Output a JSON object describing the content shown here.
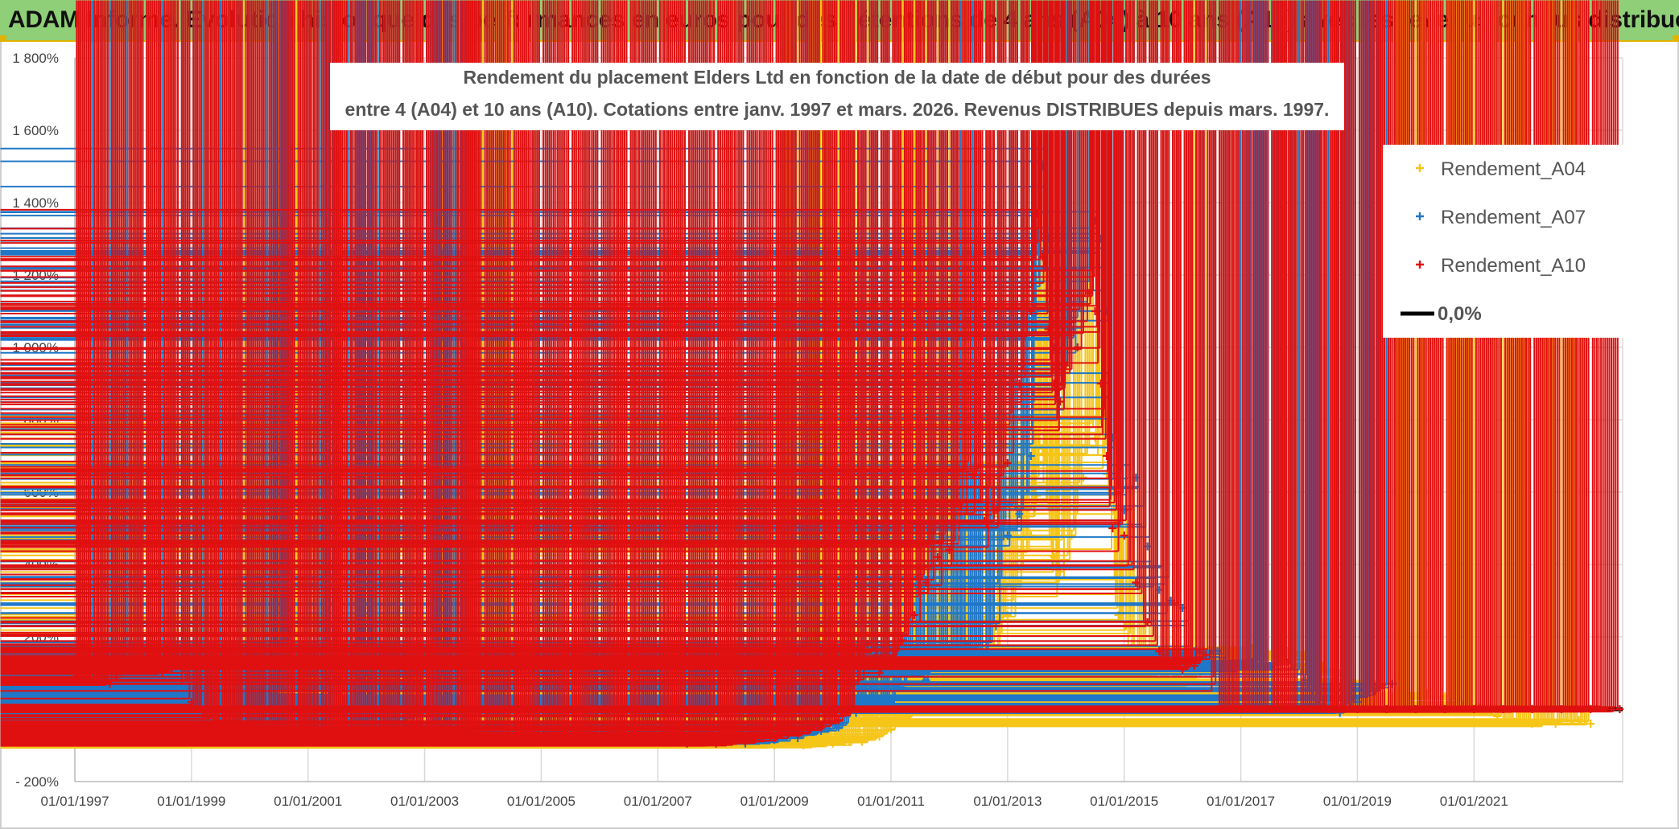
{
  "banner": {
    "title": "ADAM Informe. Evolution historique des performances en euros pour des détentions de 4 ans (A04) à 10 ans (A10) avec les revenus connus distribués",
    "background": "#8fcf78"
  },
  "chart_data": {
    "type": "scatter",
    "title_line1": "Rendement du placement Elders Ltd en fonction de la date de début pour des durées",
    "title_line2": "entre 4 (A04) et 10 ans (A10). Cotations entre janv. 1997 et mars. 2026. Revenus DISTRIBUES depuis mars. 1997.",
    "x_range": [
      1997.0,
      2023.55
    ],
    "ylim": [
      -200,
      1800
    ],
    "y_ticks": [
      -200,
      0,
      200,
      400,
      600,
      800,
      1000,
      1200,
      1400,
      1600,
      1800
    ],
    "y_tick_labels": [
      "- 200%",
      "0%",
      "200%",
      "400%",
      "600%",
      "800%",
      "1 000%",
      "1 200%",
      "1 400%",
      "1 600%",
      "1 800%"
    ],
    "x_ticks": [
      1997,
      1999,
      2001,
      2003,
      2005,
      2007,
      2009,
      2011,
      2013,
      2015,
      2017,
      2019,
      2021
    ],
    "x_tick_labels": [
      "01/01/1997",
      "01/01/1999",
      "01/01/2001",
      "01/01/2003",
      "01/01/2005",
      "01/01/2007",
      "01/01/2009",
      "01/01/2011",
      "01/01/2013",
      "01/01/2015",
      "01/01/2017",
      "01/01/2019",
      "01/01/2021"
    ],
    "legend": {
      "position": "top-right",
      "entries": [
        "Rendement_A04",
        "Rendement_A07",
        "Rendement_A10",
        "0,0%"
      ]
    },
    "series": [
      {
        "name": "Rendement_A04",
        "color": "#f5c518",
        "points": [
          [
            1997.0,
            40
          ],
          [
            1997.3,
            35
          ],
          [
            1997.6,
            -5
          ],
          [
            1997.9,
            40
          ],
          [
            1998.2,
            50
          ],
          [
            1998.5,
            60
          ],
          [
            1998.8,
            20
          ],
          [
            1999.0,
            5
          ],
          [
            1999.4,
            -5
          ],
          [
            1999.8,
            -15
          ],
          [
            2000.2,
            15
          ],
          [
            2000.6,
            10
          ],
          [
            2001.0,
            30
          ],
          [
            2001.3,
            20
          ],
          [
            2001.6,
            10
          ],
          [
            2001.8,
            75
          ],
          [
            2002.0,
            40
          ],
          [
            2002.3,
            60
          ],
          [
            2002.6,
            90
          ],
          [
            2002.8,
            120
          ],
          [
            2003.0,
            100
          ],
          [
            2003.4,
            95
          ],
          [
            2003.8,
            90
          ],
          [
            2004.2,
            70
          ],
          [
            2004.6,
            50
          ],
          [
            2004.8,
            10
          ],
          [
            2005.0,
            -50
          ],
          [
            2005.5,
            -75
          ],
          [
            2006.0,
            -85
          ],
          [
            2006.5,
            -90
          ],
          [
            2007.0,
            -90
          ],
          [
            2007.5,
            -90
          ],
          [
            2008.0,
            -95
          ],
          [
            2008.5,
            -95
          ],
          [
            2009.0,
            -100
          ],
          [
            2009.5,
            -100
          ],
          [
            2010.0,
            -95
          ],
          [
            2010.5,
            -90
          ],
          [
            2010.8,
            -75
          ],
          [
            2011.0,
            -55
          ],
          [
            2011.3,
            -20
          ],
          [
            2011.5,
            10
          ],
          [
            2011.7,
            80
          ],
          [
            2011.9,
            70
          ],
          [
            2012.1,
            50
          ],
          [
            2012.4,
            60
          ],
          [
            2012.6,
            90
          ],
          [
            2012.8,
            150
          ],
          [
            2013.0,
            260
          ],
          [
            2013.2,
            350
          ],
          [
            2013.4,
            480
          ],
          [
            2013.5,
            590
          ],
          [
            2013.6,
            720
          ],
          [
            2013.7,
            560
          ],
          [
            2013.8,
            420
          ],
          [
            2013.9,
            380
          ],
          [
            2014.1,
            480
          ],
          [
            2014.3,
            640
          ],
          [
            2014.5,
            750
          ],
          [
            2014.6,
            800
          ],
          [
            2014.7,
            650
          ],
          [
            2014.8,
            500
          ],
          [
            2014.9,
            260
          ],
          [
            2015.0,
            230
          ],
          [
            2015.2,
            150
          ],
          [
            2015.4,
            90
          ],
          [
            2015.6,
            70
          ],
          [
            2015.8,
            60
          ],
          [
            2016.0,
            60
          ],
          [
            2016.3,
            100
          ],
          [
            2016.6,
            130
          ],
          [
            2016.9,
            150
          ],
          [
            2017.2,
            170
          ],
          [
            2017.5,
            145
          ],
          [
            2017.8,
            160
          ],
          [
            2018.1,
            150
          ],
          [
            2018.4,
            120
          ],
          [
            2018.7,
            100
          ],
          [
            2019.0,
            70
          ],
          [
            2019.3,
            70
          ],
          [
            2019.6,
            20
          ],
          [
            2019.9,
            20
          ],
          [
            2020.2,
            45
          ],
          [
            2020.5,
            35
          ],
          [
            2020.8,
            10
          ],
          [
            2021.1,
            5
          ],
          [
            2021.4,
            -20
          ],
          [
            2021.7,
            -35
          ],
          [
            2022.0,
            -40
          ],
          [
            2022.4,
            -40
          ],
          [
            2022.8,
            -30
          ],
          [
            2023.0,
            -40
          ]
        ]
      },
      {
        "name": "Rendement_A07",
        "color": "#1f77c8",
        "points": [
          [
            1997.0,
            30
          ],
          [
            1997.2,
            35
          ],
          [
            1997.5,
            15
          ],
          [
            1997.8,
            60
          ],
          [
            1998.0,
            80
          ],
          [
            1998.2,
            110
          ],
          [
            1998.4,
            100
          ],
          [
            1998.6,
            170
          ],
          [
            1998.8,
            140
          ],
          [
            1999.0,
            90
          ],
          [
            1999.3,
            80
          ],
          [
            1999.6,
            40
          ],
          [
            1999.9,
            20
          ],
          [
            2000.2,
            10
          ],
          [
            2000.5,
            60
          ],
          [
            2000.8,
            90
          ],
          [
            2001.1,
            60
          ],
          [
            2001.4,
            40
          ],
          [
            2001.6,
            -10
          ],
          [
            2001.8,
            40
          ],
          [
            2002.0,
            -20
          ],
          [
            2002.3,
            -40
          ],
          [
            2002.6,
            -45
          ],
          [
            2002.8,
            -20
          ],
          [
            2003.0,
            -45
          ],
          [
            2003.3,
            -55
          ],
          [
            2003.6,
            -60
          ],
          [
            2004.0,
            -60
          ],
          [
            2004.5,
            -70
          ],
          [
            2005.0,
            -75
          ],
          [
            2005.5,
            -80
          ],
          [
            2006.0,
            -85
          ],
          [
            2006.5,
            -90
          ],
          [
            2007.0,
            -90
          ],
          [
            2007.5,
            -90
          ],
          [
            2008.0,
            -90
          ],
          [
            2008.5,
            -95
          ],
          [
            2009.0,
            -85
          ],
          [
            2009.4,
            -80
          ],
          [
            2009.8,
            -60
          ],
          [
            2010.1,
            -50
          ],
          [
            2010.4,
            -10
          ],
          [
            2010.6,
            20
          ],
          [
            2010.8,
            10
          ],
          [
            2011.0,
            20
          ],
          [
            2011.2,
            60
          ],
          [
            2011.4,
            130
          ],
          [
            2011.6,
            80
          ],
          [
            2011.8,
            150
          ],
          [
            2012.0,
            160
          ],
          [
            2012.3,
            180
          ],
          [
            2012.6,
            150
          ],
          [
            2012.8,
            230
          ],
          [
            2013.0,
            480
          ],
          [
            2013.2,
            540
          ],
          [
            2013.4,
            700
          ],
          [
            2013.5,
            1100
          ],
          [
            2013.6,
            1500
          ],
          [
            2013.7,
            1300
          ],
          [
            2013.8,
            1000
          ],
          [
            2013.9,
            850
          ],
          [
            2014.0,
            950
          ],
          [
            2014.1,
            1050
          ],
          [
            2014.3,
            1100
          ],
          [
            2014.5,
            1350
          ],
          [
            2014.6,
            1300
          ],
          [
            2014.7,
            1100
          ],
          [
            2014.8,
            750
          ],
          [
            2014.9,
            600
          ],
          [
            2015.0,
            550
          ],
          [
            2015.2,
            640
          ],
          [
            2015.4,
            450
          ],
          [
            2015.6,
            330
          ],
          [
            2015.8,
            300
          ],
          [
            2016.0,
            280
          ],
          [
            2016.2,
            160
          ],
          [
            2016.4,
            140
          ],
          [
            2016.6,
            160
          ],
          [
            2016.9,
            110
          ],
          [
            2017.2,
            130
          ],
          [
            2017.5,
            120
          ],
          [
            2017.8,
            130
          ],
          [
            2018.1,
            80
          ],
          [
            2018.4,
            10
          ],
          [
            2018.7,
            -10
          ],
          [
            2019.0,
            20
          ],
          [
            2019.3,
            50
          ],
          [
            2019.6,
            70
          ]
        ]
      },
      {
        "name": "Rendement_A10",
        "color": "#e01010",
        "points": [
          [
            1997.0,
            90
          ],
          [
            1997.3,
            80
          ],
          [
            1997.6,
            70
          ],
          [
            1997.9,
            120
          ],
          [
            1998.2,
            110
          ],
          [
            1998.5,
            100
          ],
          [
            1998.8,
            120
          ],
          [
            1999.0,
            20
          ],
          [
            1999.2,
            -20
          ],
          [
            1999.5,
            -40
          ],
          [
            1999.9,
            -45
          ],
          [
            2000.3,
            -50
          ],
          [
            2000.8,
            -55
          ],
          [
            2001.2,
            -60
          ],
          [
            2001.7,
            -65
          ],
          [
            2002.2,
            -65
          ],
          [
            2002.6,
            -55
          ],
          [
            2003.0,
            -60
          ],
          [
            2003.5,
            -65
          ],
          [
            2004.0,
            -70
          ],
          [
            2004.5,
            -75
          ],
          [
            2005.0,
            -80
          ],
          [
            2005.5,
            -85
          ],
          [
            2006.0,
            -90
          ],
          [
            2006.5,
            -90
          ],
          [
            2007.0,
            -90
          ],
          [
            2007.5,
            -95
          ],
          [
            2008.0,
            -95
          ],
          [
            2008.5,
            -90
          ],
          [
            2009.0,
            -80
          ],
          [
            2009.4,
            -70
          ],
          [
            2009.8,
            -50
          ],
          [
            2010.1,
            -30
          ],
          [
            2010.4,
            0
          ],
          [
            2010.6,
            180
          ],
          [
            2010.8,
            100
          ],
          [
            2011.0,
            120
          ],
          [
            2011.2,
            190
          ],
          [
            2011.4,
            260
          ],
          [
            2011.6,
            350
          ],
          [
            2011.8,
            420
          ],
          [
            2012.0,
            440
          ],
          [
            2012.2,
            560
          ],
          [
            2012.4,
            650
          ],
          [
            2012.6,
            520
          ],
          [
            2012.8,
            550
          ],
          [
            2013.0,
            680
          ],
          [
            2013.2,
            900
          ],
          [
            2013.4,
            1100
          ],
          [
            2013.5,
            1370
          ],
          [
            2013.6,
            1250
          ],
          [
            2013.7,
            1050
          ],
          [
            2013.8,
            900
          ],
          [
            2013.9,
            850
          ],
          [
            2014.0,
            950
          ],
          [
            2014.2,
            1000
          ],
          [
            2014.4,
            1150
          ],
          [
            2014.5,
            1100
          ],
          [
            2014.6,
            900
          ],
          [
            2014.7,
            700
          ],
          [
            2014.8,
            500
          ],
          [
            2015.0,
            480
          ],
          [
            2015.2,
            350
          ],
          [
            2015.4,
            240
          ],
          [
            2015.6,
            160
          ],
          [
            2015.8,
            120
          ],
          [
            2016.0,
            110
          ],
          [
            2016.2,
            120
          ],
          [
            2016.4,
            150
          ],
          [
            2016.6,
            0
          ],
          [
            2017.0,
            0
          ],
          [
            2017.5,
            0
          ],
          [
            2018.0,
            0
          ],
          [
            2018.5,
            0
          ],
          [
            2019.0,
            0
          ],
          [
            2019.5,
            0
          ],
          [
            2020.0,
            0
          ],
          [
            2020.5,
            0
          ],
          [
            2021.0,
            0
          ],
          [
            2021.5,
            0
          ],
          [
            2022.0,
            0
          ],
          [
            2022.5,
            0
          ],
          [
            2023.0,
            0
          ],
          [
            2023.5,
            0
          ]
        ]
      }
    ],
    "zero_line": {
      "name": "0,0%",
      "value": 0,
      "color": "#000000"
    }
  }
}
